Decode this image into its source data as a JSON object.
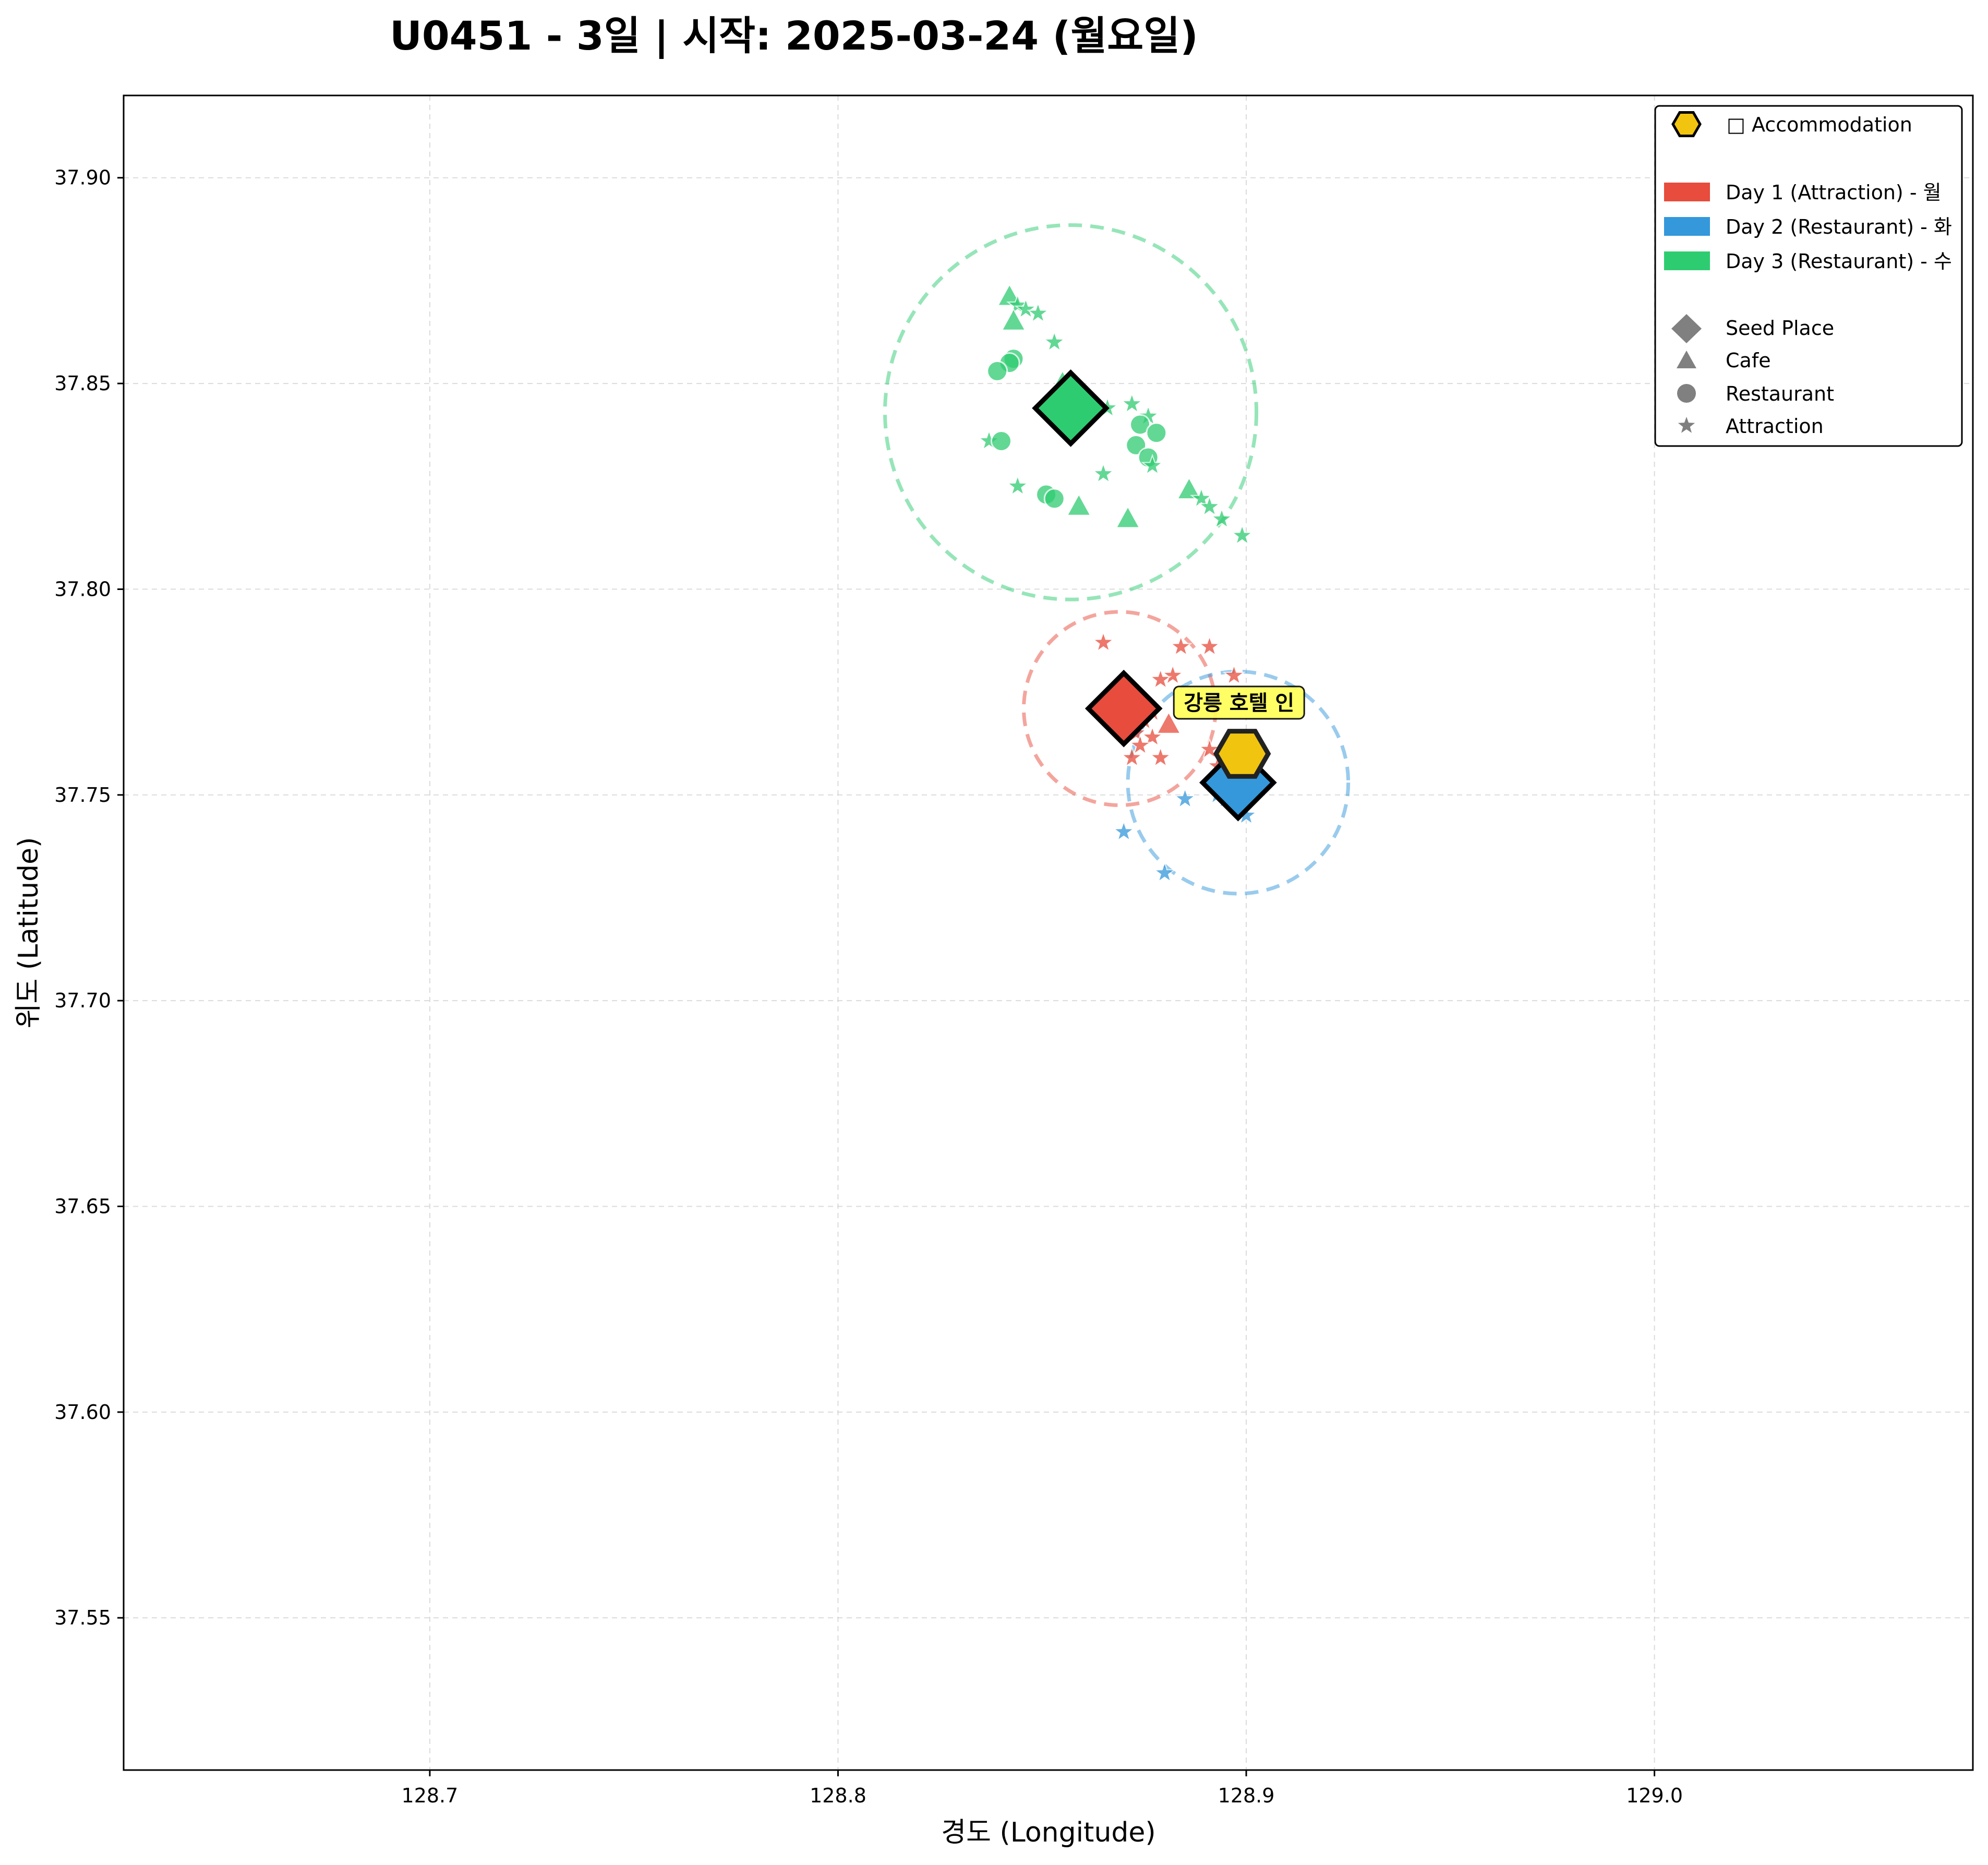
{
  "chart_data": {
    "type": "scatter",
    "title": "U0451 - 3일 | 시작: 2025-03-24 (월요일)",
    "xlabel": "경도 (Longitude)",
    "ylabel": "위도 (Latitude)",
    "xlim": [
      128.625,
      129.078
    ],
    "ylim": [
      37.513,
      37.92
    ],
    "x_ticks": [
      128.7,
      128.8,
      128.9,
      129.0
    ],
    "x_tick_labels": [
      "128.7",
      "128.8",
      "128.9",
      "129.0"
    ],
    "y_ticks": [
      37.55,
      37.6,
      37.65,
      37.7,
      37.75,
      37.8,
      37.85,
      37.9
    ],
    "y_tick_labels": [
      "37.55",
      "37.60",
      "37.65",
      "37.70",
      "37.75",
      "37.80",
      "37.85",
      "37.90"
    ],
    "grid": true,
    "legend_position": "top-right",
    "legend": {
      "accommodation": "□ Accommodation",
      "days": [
        "Day 1 (Attraction) - 월",
        "Day 2 (Restaurant) - 화",
        "Day 3 (Restaurant) - 수"
      ],
      "shapes": [
        "Seed Place",
        "Cafe",
        "Restaurant",
        "Attraction"
      ]
    },
    "colors": {
      "day1": "#e74c3c",
      "day2": "#3498db",
      "day3": "#2ecc71",
      "accommodation": "#f1c40f"
    },
    "accommodation": {
      "label": "강릉 호텔 인",
      "x": 128.899,
      "y": 37.76
    },
    "days": [
      {
        "name": "Day 1 (Attraction) - 월",
        "seed": {
          "x": 128.87,
          "y": 37.771
        },
        "circle": {
          "cx": 128.869,
          "cy": 37.771,
          "r": 0.0235
        },
        "points": [
          {
            "x": 128.865,
            "y": 37.787,
            "kind": "attraction"
          },
          {
            "x": 128.884,
            "y": 37.786,
            "kind": "attraction"
          },
          {
            "x": 128.891,
            "y": 37.786,
            "kind": "attraction"
          },
          {
            "x": 128.897,
            "y": 37.779,
            "kind": "attraction"
          },
          {
            "x": 128.882,
            "y": 37.779,
            "kind": "attraction"
          },
          {
            "x": 128.879,
            "y": 37.778,
            "kind": "attraction"
          },
          {
            "x": 128.877,
            "y": 37.77,
            "kind": "attraction"
          },
          {
            "x": 128.875,
            "y": 37.768,
            "kind": "attraction"
          },
          {
            "x": 128.881,
            "y": 37.767,
            "kind": "cafe"
          },
          {
            "x": 128.873,
            "y": 37.765,
            "kind": "attraction"
          },
          {
            "x": 128.877,
            "y": 37.764,
            "kind": "attraction"
          },
          {
            "x": 128.874,
            "y": 37.762,
            "kind": "attraction"
          },
          {
            "x": 128.891,
            "y": 37.761,
            "kind": "attraction"
          },
          {
            "x": 128.879,
            "y": 37.759,
            "kind": "attraction"
          },
          {
            "x": 128.872,
            "y": 37.759,
            "kind": "attraction"
          },
          {
            "x": 128.893,
            "y": 37.757,
            "kind": "attraction"
          }
        ]
      },
      {
        "name": "Day 2 (Restaurant) - 화",
        "seed": {
          "x": 128.898,
          "y": 37.753
        },
        "circle": {
          "cx": 128.898,
          "cy": 37.753,
          "r": 0.027
        },
        "points": [
          {
            "x": 128.899,
            "y": 37.759,
            "kind": "cafe"
          },
          {
            "x": 128.893,
            "y": 37.75,
            "kind": "attraction"
          },
          {
            "x": 128.885,
            "y": 37.749,
            "kind": "attraction"
          },
          {
            "x": 128.895,
            "y": 37.749,
            "kind": "attraction"
          },
          {
            "x": 128.9,
            "y": 37.745,
            "kind": "attraction"
          },
          {
            "x": 128.87,
            "y": 37.741,
            "kind": "attraction"
          },
          {
            "x": 128.88,
            "y": 37.731,
            "kind": "attraction"
          }
        ]
      },
      {
        "name": "Day 3 (Restaurant) - 수",
        "seed": {
          "x": 128.857,
          "y": 37.844
        },
        "circle": {
          "cx": 128.857,
          "cy": 37.843,
          "r": 0.0455
        },
        "points": [
          {
            "x": 128.842,
            "y": 37.871,
            "kind": "cafe"
          },
          {
            "x": 128.844,
            "y": 37.869,
            "kind": "attraction"
          },
          {
            "x": 128.846,
            "y": 37.868,
            "kind": "attraction"
          },
          {
            "x": 128.849,
            "y": 37.867,
            "kind": "attraction"
          },
          {
            "x": 128.843,
            "y": 37.865,
            "kind": "cafe"
          },
          {
            "x": 128.853,
            "y": 37.86,
            "kind": "attraction"
          },
          {
            "x": 128.843,
            "y": 37.856,
            "kind": "restaurant"
          },
          {
            "x": 128.842,
            "y": 37.855,
            "kind": "restaurant"
          },
          {
            "x": 128.839,
            "y": 37.853,
            "kind": "restaurant"
          },
          {
            "x": 128.855,
            "y": 37.85,
            "kind": "cafe"
          },
          {
            "x": 128.872,
            "y": 37.845,
            "kind": "attraction"
          },
          {
            "x": 128.866,
            "y": 37.844,
            "kind": "attraction"
          },
          {
            "x": 128.876,
            "y": 37.842,
            "kind": "attraction"
          },
          {
            "x": 128.874,
            "y": 37.84,
            "kind": "restaurant"
          },
          {
            "x": 128.878,
            "y": 37.838,
            "kind": "restaurant"
          },
          {
            "x": 128.837,
            "y": 37.836,
            "kind": "attraction"
          },
          {
            "x": 128.84,
            "y": 37.836,
            "kind": "restaurant"
          },
          {
            "x": 128.873,
            "y": 37.835,
            "kind": "restaurant"
          },
          {
            "x": 128.876,
            "y": 37.832,
            "kind": "restaurant"
          },
          {
            "x": 128.877,
            "y": 37.83,
            "kind": "attraction"
          },
          {
            "x": 128.865,
            "y": 37.828,
            "kind": "attraction"
          },
          {
            "x": 128.844,
            "y": 37.825,
            "kind": "attraction"
          },
          {
            "x": 128.886,
            "y": 37.824,
            "kind": "cafe"
          },
          {
            "x": 128.851,
            "y": 37.823,
            "kind": "restaurant"
          },
          {
            "x": 128.853,
            "y": 37.822,
            "kind": "restaurant"
          },
          {
            "x": 128.889,
            "y": 37.822,
            "kind": "attraction"
          },
          {
            "x": 128.859,
            "y": 37.82,
            "kind": "cafe"
          },
          {
            "x": 128.891,
            "y": 37.82,
            "kind": "attraction"
          },
          {
            "x": 128.894,
            "y": 37.817,
            "kind": "attraction"
          },
          {
            "x": 128.871,
            "y": 37.817,
            "kind": "cafe"
          },
          {
            "x": 128.899,
            "y": 37.813,
            "kind": "attraction"
          }
        ]
      }
    ]
  }
}
